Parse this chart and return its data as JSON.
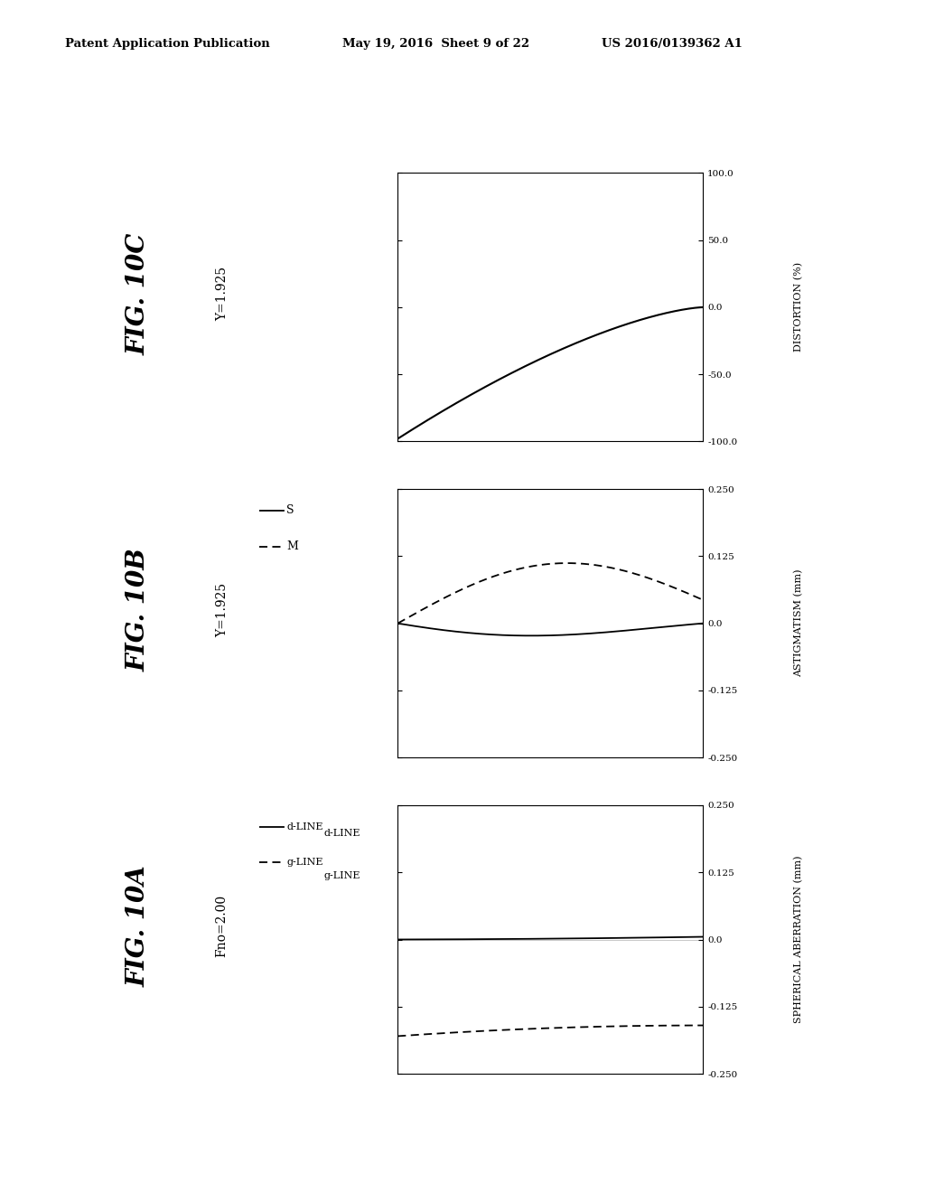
{
  "header_left": "Patent Application Publication",
  "header_center": "May 19, 2016  Sheet 9 of 22",
  "header_right": "US 2016/0139362 A1",
  "fig_titles": [
    "FIG. 10A",
    "FIG. 10B",
    "FIG. 10C"
  ],
  "fig_subtitles": [
    "Fno=2.00",
    "Y=1.925",
    "Y=1.925"
  ],
  "panel_A_ylabel": "SPHERICAL ABERRATION (mm)",
  "panel_A_ylim": [
    -0.25,
    0.25
  ],
  "panel_A_yticks": [
    -0.25,
    -0.125,
    0.0,
    0.125,
    0.25
  ],
  "panel_A_ytick_labels": [
    "-0.250",
    "-0.125",
    "0.0",
    "0.125",
    "0.250"
  ],
  "panel_B_ylabel": "ASTIGMATISM (mm)",
  "panel_B_ylim": [
    -0.25,
    0.25
  ],
  "panel_B_yticks": [
    -0.25,
    -0.125,
    0.0,
    0.125,
    0.25
  ],
  "panel_B_ytick_labels": [
    "-0.250",
    "-0.125",
    "0.0",
    "0.125",
    "0.250"
  ],
  "panel_C_ylabel": "DISTORTION (%)",
  "panel_C_ylim": [
    -100.0,
    100.0
  ],
  "panel_C_yticks": [
    -100.0,
    -50.0,
    0.0,
    50.0,
    100.0
  ],
  "panel_C_ytick_labels": [
    "-100.0",
    "-50.0",
    "0.0",
    "50.0",
    "100.0"
  ],
  "legend_A_entries": [
    "d-LINE",
    "g-LINE"
  ],
  "legend_B_entries": [
    "S",
    "M"
  ],
  "background_color": "#ffffff",
  "line_color": "#000000"
}
